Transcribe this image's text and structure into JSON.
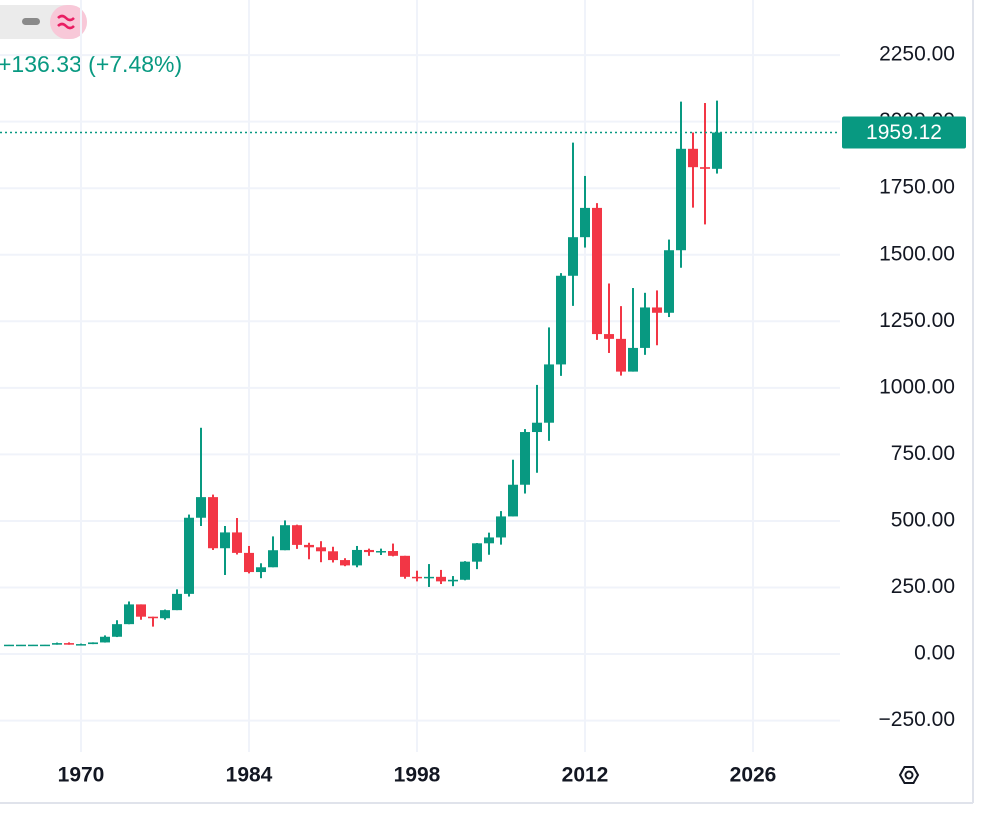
{
  "chart_data": {
    "type": "candlestick",
    "change_label": "+136.33 (+7.48%)",
    "x": [
      1964,
      1965,
      1966,
      1967,
      1968,
      1969,
      1970,
      1971,
      1972,
      1973,
      1974,
      1975,
      1976,
      1977,
      1978,
      1979,
      1980,
      1981,
      1982,
      1983,
      1984,
      1985,
      1986,
      1987,
      1988,
      1989,
      1990,
      1991,
      1992,
      1993,
      1994,
      1995,
      1996,
      1997,
      1998,
      1999,
      2000,
      2001,
      2002,
      2003,
      2004,
      2005,
      2006,
      2007,
      2008,
      2009,
      2010,
      2011,
      2012,
      2013,
      2014,
      2015,
      2016,
      2017,
      2018,
      2019,
      2020,
      2021,
      2022,
      2023
    ],
    "open": [
      35.1,
      35.1,
      35.1,
      35.2,
      35.2,
      41.1,
      35.2,
      37.4,
      43.6,
      64.9,
      112.3,
      186.5,
      140.3,
      134.5,
      164.9,
      226,
      512,
      589.5,
      397.5,
      456.9,
      380,
      308,
      326,
      390,
      484,
      410,
      401,
      386,
      353,
      333,
      391,
      383,
      387,
      369,
      290,
      288,
      290,
      273,
      279,
      347,
      416,
      438,
      517,
      636,
      834,
      869,
      1088,
      1421,
      1566,
      1676,
      1202,
      1184,
      1061,
      1150,
      1302,
      1282,
      1517,
      1898,
      1829,
      1822.79
    ],
    "high": [
      35.3,
      35.2,
      35.2,
      35.3,
      43,
      43.8,
      39.2,
      44,
      70,
      127,
      197.5,
      186.5,
      140.3,
      167,
      243,
      524,
      850,
      599,
      481,
      511,
      406,
      341,
      442,
      502,
      486,
      418,
      424,
      403,
      360,
      406,
      396,
      396,
      415,
      369,
      313,
      338,
      316,
      293,
      349,
      417,
      456,
      537,
      730,
      845,
      1011,
      1227,
      1431,
      1921,
      1796,
      1694,
      1392,
      1307,
      1375,
      1357,
      1366,
      1557,
      2075,
      1959,
      2070,
      2079
    ],
    "low": [
      35,
      35,
      35,
      35,
      35.2,
      35,
      34.8,
      37.3,
      43,
      63.8,
      112,
      128.8,
      103,
      129,
      164.9,
      216,
      481,
      391,
      297,
      374,
      303,
      285,
      326,
      390,
      395,
      356,
      345,
      344,
      330,
      326,
      369,
      372,
      367,
      283,
      273,
      252,
      263,
      255,
      277,
      319,
      373,
      411,
      517,
      603,
      681,
      801,
      1045,
      1308,
      1527,
      1180,
      1131,
      1046,
      1061,
      1124,
      1160,
      1266,
      1451,
      1677,
      1614,
      1805
    ],
    "close": [
      35.1,
      35.1,
      35.2,
      35.2,
      41.1,
      35.2,
      37.4,
      43.6,
      64.9,
      112.3,
      186.5,
      140.3,
      134.5,
      164.9,
      226,
      512,
      589.5,
      397.5,
      456.9,
      380,
      308,
      326,
      390,
      484,
      410,
      401,
      386,
      353,
      333,
      391,
      383,
      387,
      369,
      290,
      288,
      290,
      273,
      279,
      347,
      416,
      438,
      517,
      636,
      834,
      869,
      1088,
      1421,
      1566,
      1676,
      1202,
      1184,
      1061,
      1150,
      1302,
      1282,
      1517,
      1898,
      1829,
      1822.79,
      1959.12
    ],
    "up_color": "#089981",
    "down_color": "#f23645",
    "xlim": [
      1963.25,
      2033.25
    ],
    "xticks": [
      1970,
      1984,
      1998,
      2012,
      2026
    ],
    "ylim": [
      -368,
      2457
    ],
    "yticks": [
      {
        "value": -250,
        "label": "−250.00"
      },
      {
        "value": 0,
        "label": "0.00"
      },
      {
        "value": 250,
        "label": "250.00"
      },
      {
        "value": 500,
        "label": "500.00"
      },
      {
        "value": 750,
        "label": "750.00"
      },
      {
        "value": 1000,
        "label": "1000.00"
      },
      {
        "value": 1250,
        "label": "1250.00"
      },
      {
        "value": 1500,
        "label": "1500.00"
      },
      {
        "value": 1750,
        "label": "1750.00"
      },
      {
        "value": 2000,
        "label": "2000.00"
      },
      {
        "value": 2250,
        "label": "2250.00"
      }
    ],
    "grid": true
  }
}
